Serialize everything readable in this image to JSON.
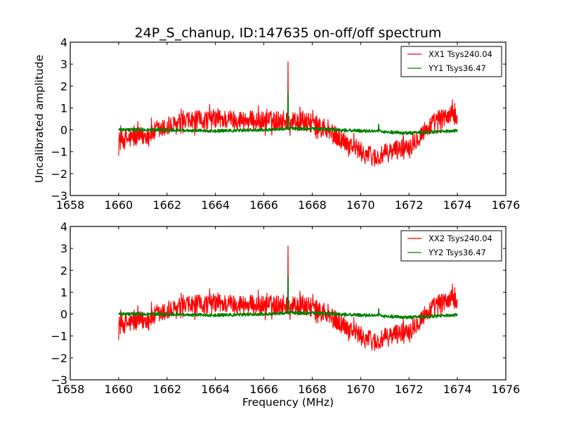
{
  "chart_data": [
    {
      "type": "line",
      "title": "24P_S_chanup, ID:147635 on-off/off spectrum",
      "xlabel": "",
      "ylabel": "Uncalibrated amplitude",
      "xlim": [
        1658,
        1676
      ],
      "ylim": [
        -3,
        4
      ],
      "xticks": [
        "1658",
        "1660",
        "1662",
        "1664",
        "1666",
        "1668",
        "1670",
        "1672",
        "1674",
        "1676"
      ],
      "yticks": [
        "−3",
        "−2",
        "−1",
        "0",
        "1",
        "2",
        "3",
        "4"
      ],
      "grid": false,
      "legend_position": "top-right",
      "series": [
        {
          "name": "XX1 Tsys240.04",
          "color": "#ff0000",
          "x_range": [
            1660,
            1674
          ],
          "profile_x": [
            1660,
            1661,
            1662,
            1663,
            1664,
            1665,
            1666,
            1666.9,
            1667.0,
            1667.1,
            1668,
            1669,
            1669.5,
            1670,
            1670.7,
            1671,
            1672,
            1672.5,
            1673,
            1673.5,
            1674
          ],
          "profile_y": [
            -0.5,
            -0.3,
            0.1,
            0.4,
            0.5,
            0.45,
            0.4,
            0.45,
            3.1,
            0.4,
            0.3,
            -0.3,
            -0.6,
            -1.0,
            -1.3,
            -1.1,
            -0.7,
            -0.2,
            0.3,
            0.6,
            0.7
          ],
          "noise_amplitude": 0.45
        },
        {
          "name": "YY1 Tsys36.47",
          "color": "#008000",
          "x_range": [
            1660,
            1674
          ],
          "profile_x": [
            1660,
            1662,
            1664,
            1666,
            1666.9,
            1667.0,
            1667.1,
            1668,
            1669,
            1670,
            1670.7,
            1670.75,
            1670.8,
            1671,
            1672,
            1673,
            1674
          ],
          "profile_y": [
            0.0,
            0.0,
            -0.05,
            0.0,
            0.05,
            1.7,
            0.05,
            0.05,
            0.0,
            -0.05,
            -0.05,
            0.3,
            -0.05,
            -0.1,
            -0.15,
            -0.1,
            -0.05
          ],
          "noise_amplitude": 0.07
        }
      ]
    },
    {
      "type": "line",
      "title": "",
      "xlabel": "Frequency (MHz)",
      "ylabel": "",
      "xlim": [
        1658,
        1676
      ],
      "ylim": [
        -3,
        4
      ],
      "xticks": [
        "1658",
        "1660",
        "1662",
        "1664",
        "1666",
        "1668",
        "1670",
        "1672",
        "1674",
        "1676"
      ],
      "yticks": [
        "−3",
        "−2",
        "−1",
        "0",
        "1",
        "2",
        "3",
        "4"
      ],
      "grid": false,
      "legend_position": "top-right",
      "series": [
        {
          "name": "XX2 Tsys240.04",
          "color": "#ff0000",
          "x_range": [
            1660,
            1674
          ],
          "profile_x": [
            1660,
            1661,
            1662,
            1663,
            1664,
            1665,
            1666,
            1666.9,
            1667.0,
            1667.1,
            1668,
            1669,
            1669.5,
            1670,
            1670.7,
            1671,
            1672,
            1672.5,
            1673,
            1673.5,
            1674
          ],
          "profile_y": [
            -0.5,
            -0.3,
            0.1,
            0.4,
            0.5,
            0.45,
            0.4,
            0.45,
            3.1,
            0.4,
            0.3,
            -0.3,
            -0.6,
            -1.0,
            -1.3,
            -1.1,
            -0.7,
            -0.2,
            0.3,
            0.6,
            0.7
          ],
          "noise_amplitude": 0.45
        },
        {
          "name": "YY2 Tsys36.47",
          "color": "#008000",
          "x_range": [
            1660,
            1674
          ],
          "profile_x": [
            1660,
            1662,
            1664,
            1666,
            1666.9,
            1667.0,
            1667.1,
            1668,
            1669,
            1670,
            1670.7,
            1670.75,
            1670.8,
            1671,
            1672,
            1673,
            1674
          ],
          "profile_y": [
            0.0,
            0.0,
            -0.05,
            0.0,
            0.05,
            1.7,
            0.05,
            0.05,
            0.0,
            -0.05,
            -0.05,
            0.3,
            -0.05,
            -0.1,
            -0.15,
            -0.1,
            -0.05
          ],
          "noise_amplitude": 0.07
        }
      ]
    }
  ]
}
